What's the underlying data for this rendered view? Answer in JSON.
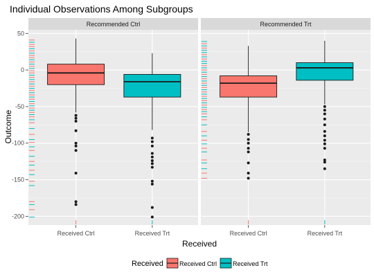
{
  "chart_data": {
    "type": "boxplot",
    "title": "Individual Observations Among Subgroups",
    "xlabel": "Received",
    "ylabel": "Outcome",
    "ylim": [
      -212,
      55
    ],
    "yticks": [
      50,
      0,
      -50,
      -100,
      -150,
      -200
    ],
    "categories": [
      "Received Ctrl",
      "Received Trt"
    ],
    "grid": true,
    "legend": {
      "position": "bottom",
      "title": "Received",
      "entries": [
        {
          "label": "Received Ctrl",
          "color": "#F8766D"
        },
        {
          "label": "Received Trt",
          "color": "#00BFC4"
        }
      ]
    },
    "panels": [
      {
        "strip": "Recommended Ctrl",
        "boxes": [
          {
            "group": "Received Ctrl",
            "color": "#F8766D",
            "q1": -20,
            "median": -4,
            "q3": 8,
            "lower_whisker": -58,
            "upper_whisker": 43,
            "outliers": [
              -62,
              -66,
              -70,
              -83,
              -100,
              -104,
              -110,
              -141,
              -180,
              -184
            ]
          },
          {
            "group": "Received Trt",
            "color": "#00BFC4",
            "q1": -37,
            "median": -16,
            "q3": -6,
            "lower_whisker": -82,
            "upper_whisker": 23,
            "outliers": [
              -93,
              -98,
              -104,
              -114,
              -119,
              -124,
              -128,
              -133,
              -152,
              -156,
              -188,
              -201
            ]
          }
        ],
        "rug": [
          {
            "y": 41,
            "color": "#F8766D"
          },
          {
            "y": 38,
            "color": "#00BFC4"
          },
          {
            "y": 35,
            "color": "#F8766D"
          },
          {
            "y": 32,
            "color": "#F8766D"
          },
          {
            "y": 29,
            "color": "#00BFC4"
          },
          {
            "y": 26,
            "color": "#F8766D"
          },
          {
            "y": 23,
            "color": "#00BFC4"
          },
          {
            "y": 20,
            "color": "#F8766D"
          },
          {
            "y": 17,
            "color": "#F8766D"
          },
          {
            "y": 14,
            "color": "#00BFC4"
          },
          {
            "y": 11,
            "color": "#F8766D"
          },
          {
            "y": 8,
            "color": "#00BFC4"
          },
          {
            "y": 5,
            "color": "#F8766D"
          },
          {
            "y": 2,
            "color": "#00BFC4"
          },
          {
            "y": -1,
            "color": "#F8766D"
          },
          {
            "y": -4,
            "color": "#F8766D"
          },
          {
            "y": -7,
            "color": "#00BFC4"
          },
          {
            "y": -10,
            "color": "#F8766D"
          },
          {
            "y": -13,
            "color": "#00BFC4"
          },
          {
            "y": -16,
            "color": "#F8766D"
          },
          {
            "y": -19,
            "color": "#00BFC4"
          },
          {
            "y": -22,
            "color": "#F8766D"
          },
          {
            "y": -25,
            "color": "#00BFC4"
          },
          {
            "y": -28,
            "color": "#F8766D"
          },
          {
            "y": -31,
            "color": "#00BFC4"
          },
          {
            "y": -34,
            "color": "#F8766D"
          },
          {
            "y": -37,
            "color": "#00BFC4"
          },
          {
            "y": -40,
            "color": "#F8766D"
          },
          {
            "y": -43,
            "color": "#00BFC4"
          },
          {
            "y": -46,
            "color": "#F8766D"
          },
          {
            "y": -49,
            "color": "#00BFC4"
          },
          {
            "y": -52,
            "color": "#F8766D"
          },
          {
            "y": -55,
            "color": "#00BFC4"
          },
          {
            "y": -58,
            "color": "#F8766D"
          },
          {
            "y": -61,
            "color": "#00BFC4"
          },
          {
            "y": -64,
            "color": "#F8766D"
          },
          {
            "y": -68,
            "color": "#00BFC4"
          },
          {
            "y": -72,
            "color": "#F8766D"
          },
          {
            "y": -80,
            "color": "#00BFC4"
          },
          {
            "y": -88,
            "color": "#F8766D"
          },
          {
            "y": -95,
            "color": "#00BFC4"
          },
          {
            "y": -99,
            "color": "#F8766D"
          },
          {
            "y": -105,
            "color": "#00BFC4"
          },
          {
            "y": -110,
            "color": "#F8766D"
          },
          {
            "y": -118,
            "color": "#00BFC4"
          },
          {
            "y": -125,
            "color": "#F8766D"
          },
          {
            "y": -130,
            "color": "#00BFC4"
          },
          {
            "y": -137,
            "color": "#F8766D"
          },
          {
            "y": -143,
            "color": "#00BFC4"
          },
          {
            "y": -152,
            "color": "#F8766D"
          },
          {
            "y": -158,
            "color": "#00BFC4"
          },
          {
            "y": -180,
            "color": "#F8766D"
          },
          {
            "y": -184,
            "color": "#00BFC4"
          },
          {
            "y": -191,
            "color": "#F8766D"
          },
          {
            "y": -201,
            "color": "#00BFC4"
          }
        ]
      },
      {
        "strip": "Recommended Trt",
        "boxes": [
          {
            "group": "Received Ctrl",
            "color": "#F8766D",
            "q1": -37,
            "median": -18,
            "q3": -8,
            "lower_whisker": -85,
            "upper_whisker": 33,
            "outliers": [
              -88,
              -95,
              -100,
              -107,
              -112,
              -127,
              -141,
              -148
            ]
          },
          {
            "group": "Received Trt",
            "color": "#00BFC4",
            "q1": -14,
            "median": 3,
            "q3": 10,
            "lower_whisker": -47,
            "upper_whisker": 40,
            "outliers": [
              -50,
              -55,
              -60,
              -67,
              -75,
              -84,
              -90,
              -96,
              -101,
              -107,
              -123,
              -126,
              -135
            ]
          }
        ],
        "rug": [
          {
            "y": 39,
            "color": "#00BFC4"
          },
          {
            "y": 36,
            "color": "#F8766D"
          },
          {
            "y": 33,
            "color": "#00BFC4"
          },
          {
            "y": 30,
            "color": "#F8766D"
          },
          {
            "y": 27,
            "color": "#00BFC4"
          },
          {
            "y": 24,
            "color": "#00BFC4"
          },
          {
            "y": 21,
            "color": "#F8766D"
          },
          {
            "y": 18,
            "color": "#00BFC4"
          },
          {
            "y": 15,
            "color": "#F8766D"
          },
          {
            "y": 12,
            "color": "#00BFC4"
          },
          {
            "y": 9,
            "color": "#00BFC4"
          },
          {
            "y": 6,
            "color": "#F8766D"
          },
          {
            "y": 3,
            "color": "#00BFC4"
          },
          {
            "y": 0,
            "color": "#F8766D"
          },
          {
            "y": -3,
            "color": "#00BFC4"
          },
          {
            "y": -6,
            "color": "#F8766D"
          },
          {
            "y": -9,
            "color": "#00BFC4"
          },
          {
            "y": -12,
            "color": "#F8766D"
          },
          {
            "y": -15,
            "color": "#00BFC4"
          },
          {
            "y": -18,
            "color": "#F8766D"
          },
          {
            "y": -21,
            "color": "#00BFC4"
          },
          {
            "y": -24,
            "color": "#F8766D"
          },
          {
            "y": -27,
            "color": "#00BFC4"
          },
          {
            "y": -30,
            "color": "#F8766D"
          },
          {
            "y": -33,
            "color": "#00BFC4"
          },
          {
            "y": -36,
            "color": "#F8766D"
          },
          {
            "y": -39,
            "color": "#00BFC4"
          },
          {
            "y": -42,
            "color": "#F8766D"
          },
          {
            "y": -45,
            "color": "#00BFC4"
          },
          {
            "y": -48,
            "color": "#F8766D"
          },
          {
            "y": -51,
            "color": "#00BFC4"
          },
          {
            "y": -54,
            "color": "#F8766D"
          },
          {
            "y": -57,
            "color": "#00BFC4"
          },
          {
            "y": -60,
            "color": "#F8766D"
          },
          {
            "y": -64,
            "color": "#00BFC4"
          },
          {
            "y": -68,
            "color": "#F8766D"
          },
          {
            "y": -75,
            "color": "#00BFC4"
          },
          {
            "y": -84,
            "color": "#F8766D"
          },
          {
            "y": -90,
            "color": "#00BFC4"
          },
          {
            "y": -96,
            "color": "#F8766D"
          },
          {
            "y": -101,
            "color": "#00BFC4"
          },
          {
            "y": -107,
            "color": "#F8766D"
          },
          {
            "y": -112,
            "color": "#00BFC4"
          },
          {
            "y": -123,
            "color": "#F8766D"
          },
          {
            "y": -127,
            "color": "#00BFC4"
          },
          {
            "y": -135,
            "color": "#00BFC4"
          },
          {
            "y": -141,
            "color": "#F8766D"
          },
          {
            "y": -148,
            "color": "#F8766D"
          }
        ]
      }
    ]
  }
}
